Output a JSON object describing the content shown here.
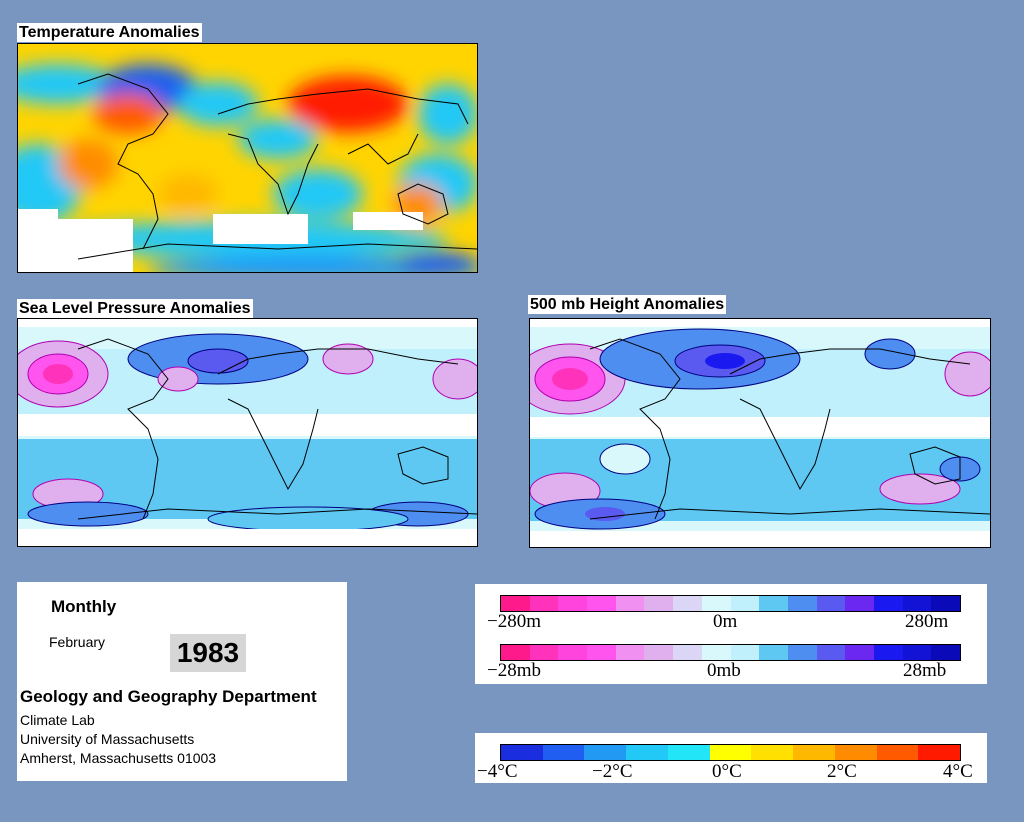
{
  "panels": {
    "temperature": {
      "title": "Temperature Anomalies"
    },
    "slp": {
      "title": "Sea Level Pressure Anomalies"
    },
    "height500": {
      "title": "500 mb Height Anomalies"
    }
  },
  "info": {
    "frequency": "Monthly",
    "month": "February",
    "year": "1983",
    "department": "Geology and Geography Department",
    "lines": [
      "Climate Lab",
      "University of Massachusetts",
      "Amherst, Massachusetts 01003"
    ]
  },
  "legends": {
    "height": {
      "min": "−280m",
      "mid": "0m",
      "max": "280m"
    },
    "pressure": {
      "min": "−28mb",
      "mid": "0mb",
      "max": "28mb"
    },
    "temperature": {
      "ticks": [
        "−4°C",
        "−2°C",
        "0°C",
        "2°C",
        "4°C"
      ]
    }
  },
  "colors": {
    "background": "#7896bf",
    "pressure_scale": [
      "#ff1a8c",
      "#ff33bb",
      "#ff44dd",
      "#ff55ee",
      "#f090f0",
      "#e0b0ee",
      "#dcd6f6",
      "#d8f8fb",
      "#bff0fb",
      "#5fc8f2",
      "#4d8ef0",
      "#5a5af0",
      "#6a28f0",
      "#1a1af0",
      "#1313d6",
      "#0a0ab8"
    ],
    "temperature_scale": [
      "#1a2ee0",
      "#1f5ef0",
      "#229af4",
      "#22c8f6",
      "#22e6f8",
      "#ffff00",
      "#ffe000",
      "#ffb800",
      "#ff8c00",
      "#ff5a00",
      "#ff1a00"
    ]
  }
}
